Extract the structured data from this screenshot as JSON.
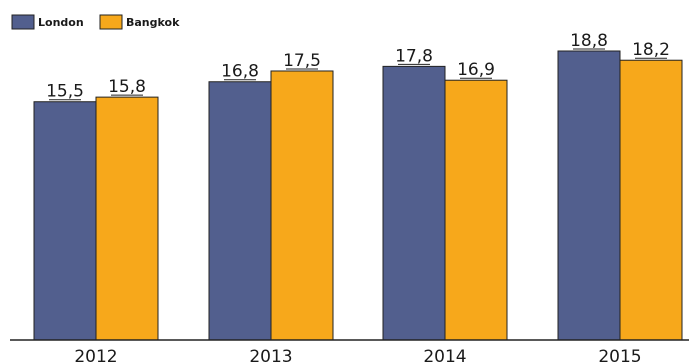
{
  "chart_data": {
    "type": "bar",
    "categories": [
      "2012",
      "2013",
      "2014",
      "2015"
    ],
    "series": [
      {
        "name": "London",
        "values": [
          15.5,
          16.8,
          17.8,
          18.8
        ],
        "value_labels": [
          "15,5",
          "16,8",
          "17,8",
          "18,8"
        ],
        "color": "#525f8e"
      },
      {
        "name": "Bangkok",
        "values": [
          15.8,
          17.5,
          16.9,
          18.2
        ],
        "value_labels": [
          "15,8",
          "17,5",
          "16,9",
          "18,2"
        ],
        "color": "#f7a81b"
      }
    ],
    "title": "",
    "xlabel": "",
    "ylabel": "",
    "ylim": [
      0,
      18.8
    ],
    "grid": false,
    "legend_position": "top-left"
  }
}
